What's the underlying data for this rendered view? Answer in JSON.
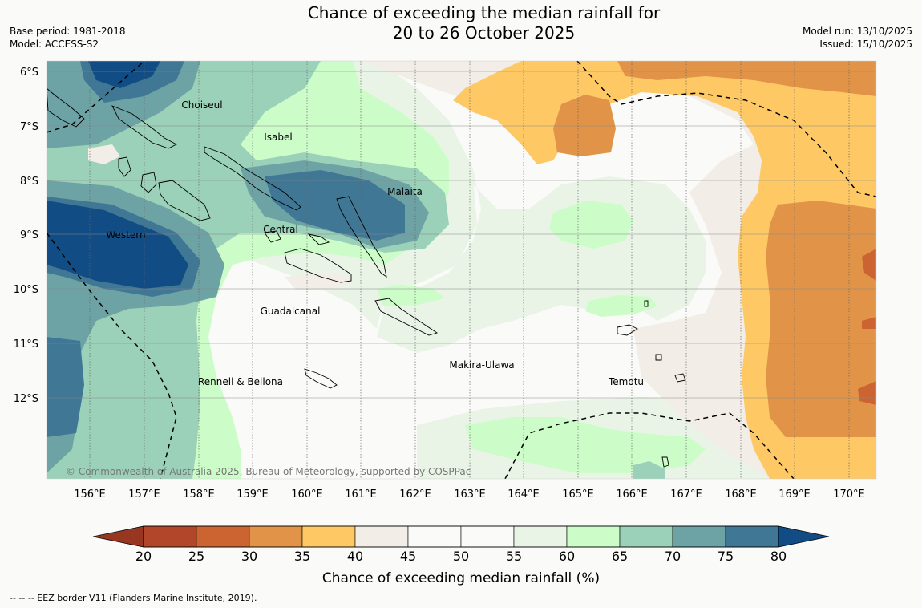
{
  "title": {
    "line1": "Chance of exceeding the median rainfall for",
    "line2": "20 to 26 October 2025"
  },
  "meta": {
    "base_period": "Base period: 1981-2018",
    "model": "Model: ACCESS-S2",
    "model_run": "Model run: 13/10/2025",
    "issued": "Issued: 15/10/2025"
  },
  "map": {
    "latitudes": [
      "6°S",
      "7°S",
      "8°S",
      "9°S",
      "10°S",
      "11°S",
      "12°S"
    ],
    "longitudes": [
      "156°E",
      "157°E",
      "158°E",
      "159°E",
      "160°E",
      "161°E",
      "162°E",
      "163°E",
      "164°E",
      "165°E",
      "166°E",
      "167°E",
      "168°E",
      "169°E",
      "170°E"
    ],
    "regions": [
      "Choiseul",
      "Isabel",
      "Malaita",
      "Western",
      "Central",
      "Guadalcanal",
      "Makira-Ulawa",
      "Rennell & Bellona",
      "Temotu"
    ],
    "copyright": "© Commonwealth of Australia 2025, Bureau of Meteorology, supported by COSPPac"
  },
  "colorbar": {
    "title": "Chance of exceeding median rainfall (%)",
    "ticks": [
      "20",
      "25",
      "30",
      "35",
      "40",
      "45",
      "50",
      "55",
      "60",
      "65",
      "70",
      "75",
      "80"
    ],
    "colors": [
      "#b2462a",
      "#cc6432",
      "#e19448",
      "#fec965",
      "#f2ede6",
      "#fafbf8",
      "#fafbf8",
      "#e9f4e6",
      "#ccfcc8",
      "#9bd1b9",
      "#6da3a5",
      "#3f7795"
    ],
    "under_color": "#973621",
    "over_color": "#124c85"
  },
  "footnote": "--  --  -- EEZ border V11 (Flanders Marine Institute, 2019)."
}
